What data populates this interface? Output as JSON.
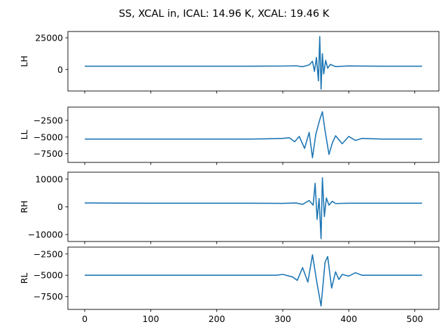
{
  "figure": {
    "title": "SS, XCAL in, ICAL: 14.96 K, XCAL: 19.46 K",
    "line_color": "#1f77b4"
  },
  "chart_data": [
    {
      "type": "line",
      "ylabel": "LH",
      "xlim": [
        -25.5,
        536.5
      ],
      "ylim": [
        -17000,
        30000
      ],
      "yticks": [
        0,
        25000
      ],
      "ytick_labels": [
        "0",
        "25000"
      ],
      "xticks": [
        0,
        100,
        200,
        300,
        400,
        500
      ],
      "xtick_labels": [],
      "x": [
        0,
        50,
        100,
        150,
        200,
        250,
        300,
        320,
        330,
        340,
        345,
        348,
        351,
        354,
        356,
        358,
        360,
        362,
        365,
        368,
        372,
        380,
        400,
        450,
        511
      ],
      "y": [
        2600,
        2600,
        2600,
        2600,
        2600,
        2600,
        2700,
        2900,
        2200,
        3600,
        6500,
        -1500,
        9500,
        -9000,
        26000,
        -15500,
        12500,
        -3500,
        7200,
        1000,
        4000,
        2300,
        2800,
        2600,
        2600
      ]
    },
    {
      "type": "line",
      "ylabel": "LL",
      "xlim": [
        -25.5,
        536.5
      ],
      "ylim": [
        -8800,
        -500
      ],
      "yticks": [
        -2500,
        -5000,
        -7500
      ],
      "ytick_labels": [
        "−2500",
        "−5000",
        "−7500"
      ],
      "xticks": [
        0,
        100,
        200,
        300,
        400,
        500
      ],
      "xtick_labels": [],
      "x": [
        0,
        50,
        100,
        150,
        200,
        250,
        280,
        300,
        310,
        318,
        325,
        333,
        340,
        345,
        350,
        356,
        360,
        364,
        370,
        375,
        380,
        390,
        400,
        410,
        420,
        450,
        511
      ],
      "y": [
        -5300,
        -5300,
        -5300,
        -5300,
        -5300,
        -5300,
        -5250,
        -5200,
        -5100,
        -5700,
        -4900,
        -6700,
        -4300,
        -8100,
        -4600,
        -2400,
        -1200,
        -4000,
        -7600,
        -5900,
        -4800,
        -6000,
        -4900,
        -5500,
        -5200,
        -5300,
        -5300
      ]
    },
    {
      "type": "line",
      "ylabel": "RH",
      "xlim": [
        -25.5,
        536.5
      ],
      "ylim": [
        -12500,
        12500
      ],
      "yticks": [
        10000,
        0,
        -10000
      ],
      "ytick_labels": [
        "10000",
        "0",
        "−10000"
      ],
      "xticks": [
        0,
        100,
        200,
        300,
        400,
        500
      ],
      "xtick_labels": [],
      "x": [
        0,
        50,
        100,
        150,
        200,
        250,
        300,
        320,
        330,
        340,
        346,
        349,
        352,
        355,
        358,
        360,
        363,
        366,
        370,
        375,
        380,
        400,
        450,
        511
      ],
      "y": [
        1400,
        1350,
        1300,
        1300,
        1300,
        1300,
        1250,
        1400,
        900,
        2300,
        600,
        8500,
        -4500,
        3000,
        -11500,
        10500,
        -3500,
        3200,
        600,
        2000,
        1200,
        1300,
        1300,
        1300
      ]
    },
    {
      "type": "line",
      "ylabel": "RL",
      "xlim": [
        -25.5,
        536.5
      ],
      "ylim": [
        -9000,
        -1700
      ],
      "yticks": [
        -2500,
        -5000,
        -7500
      ],
      "ytick_labels": [
        "−2500",
        "−5000",
        "−7500"
      ],
      "xticks": [
        0,
        100,
        200,
        300,
        400,
        500
      ],
      "xtick_labels": [
        "0",
        "100",
        "200",
        "300",
        "400",
        "500"
      ],
      "x": [
        0,
        50,
        100,
        150,
        200,
        250,
        290,
        300,
        315,
        322,
        330,
        338,
        345,
        352,
        358,
        364,
        368,
        374,
        380,
        385,
        390,
        400,
        410,
        420,
        450,
        511
      ],
      "y": [
        -5000,
        -5000,
        -5000,
        -5000,
        -5000,
        -5000,
        -5000,
        -4900,
        -5200,
        -5600,
        -4100,
        -5800,
        -2600,
        -6000,
        -8600,
        -3500,
        -2800,
        -6500,
        -4600,
        -5500,
        -4900,
        -5100,
        -4700,
        -5000,
        -5000,
        -5000
      ]
    }
  ]
}
